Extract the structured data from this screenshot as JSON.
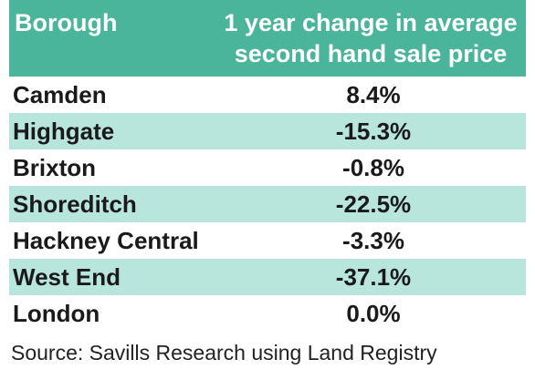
{
  "chart_data": {
    "type": "table",
    "columns": [
      "Borough",
      "1 year change in average second hand sale price"
    ],
    "header": {
      "col_a": "Borough",
      "col_b_line1": "1 year change in average",
      "col_b_line2": "second hand sale price"
    },
    "rows": [
      {
        "borough": "Camden",
        "change": "8.4%",
        "value": 8.4
      },
      {
        "borough": "Highgate",
        "change": "-15.3%",
        "value": -15.3
      },
      {
        "borough": "Brixton",
        "change": "-0.8%",
        "value": -0.8
      },
      {
        "borough": "Shoreditch",
        "change": "-22.5%",
        "value": -22.5
      },
      {
        "borough": "Hackney Central",
        "change": "-3.3%",
        "value": -3.3
      },
      {
        "borough": "West End",
        "change": "-37.1%",
        "value": -37.1
      },
      {
        "borough": "London",
        "change": "0.0%",
        "value": 0.0
      }
    ],
    "source": "Source: Savills Research using Land Registry"
  },
  "colors": {
    "header_bg": "#4ab59a",
    "alt_row_bg": "#b9e6dc",
    "text": "#1a1a1a"
  }
}
